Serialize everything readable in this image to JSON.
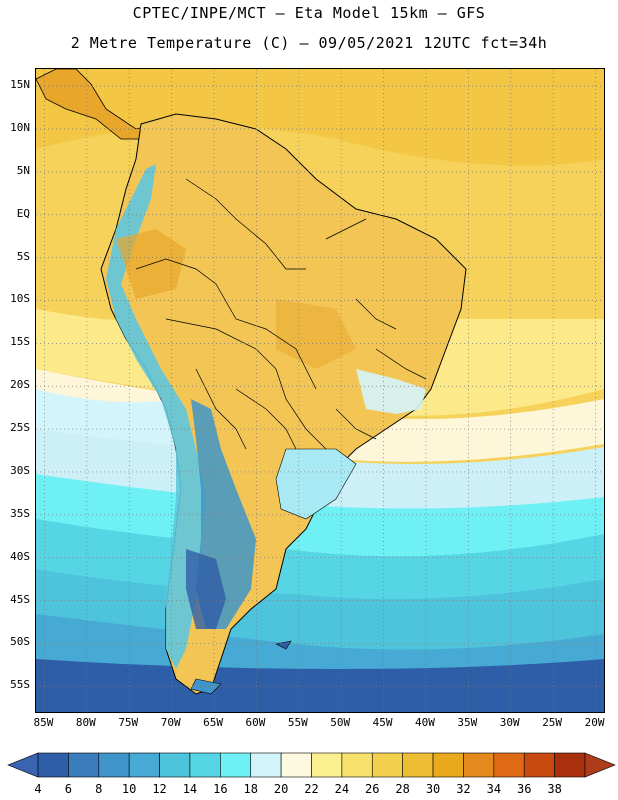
{
  "header": {
    "title_line1": "CPTEC/INPE/MCT –  Eta Model 15km – GFS",
    "title_line2": "2 Metre Temperature (C) – 09/05/2021 12UTC fct=34h"
  },
  "map": {
    "lat_labels": [
      "15N",
      "10N",
      "5N",
      "EQ",
      "5S",
      "10S",
      "15S",
      "20S",
      "25S",
      "30S",
      "35S",
      "40S",
      "45S",
      "50S",
      "55S"
    ],
    "lon_labels": [
      "85W",
      "80W",
      "75W",
      "70W",
      "65W",
      "60W",
      "55W",
      "50W",
      "45W",
      "40W",
      "35W",
      "30W",
      "25W",
      "20W"
    ],
    "extent": {
      "lon_min": -86,
      "lon_max": -19,
      "lat_min": -58,
      "lat_max": 17
    }
  },
  "legend": {
    "labels": [
      "4",
      "6",
      "8",
      "10",
      "12",
      "14",
      "16",
      "18",
      "20",
      "22",
      "24",
      "26",
      "28",
      "30",
      "32",
      "34",
      "36",
      "38"
    ],
    "colors": [
      "#2f5ea8",
      "#3a7cbc",
      "#3f95c9",
      "#46aad4",
      "#4ec4dc",
      "#56d6e4",
      "#6ef0f4",
      "#d4f4fb",
      "#fdf8e0",
      "#fbf08f",
      "#f7e06c",
      "#f3d04e",
      "#edbd33",
      "#e8a91e",
      "#e48a1c",
      "#de6a15",
      "#c94a10",
      "#a8300d"
    ],
    "below_color": "#3a64b0",
    "above_color": "#ad3c1a"
  }
}
